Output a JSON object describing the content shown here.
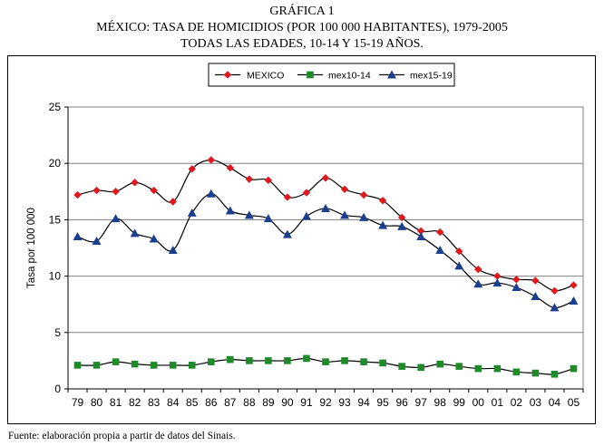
{
  "header": {
    "line1": "GRÁFICA 1",
    "line2": "MÉXICO: TASA DE HOMICIDIOS (POR 100 000 HABITANTES), 1979-2005",
    "line3": "TODAS LAS EDADES, 10-14 Y 15-19 AÑOS."
  },
  "source": "Fuente: elaboración propia a partir de datos del Sinais.",
  "chart_data": {
    "type": "line",
    "title": "MÉXICO: TASA DE HOMICIDIOS (POR 100 000 HABITANTES), 1979-2005",
    "xlabel": "",
    "ylabel": "Tasa por 100 000",
    "ylim": [
      0,
      25
    ],
    "yticks": [
      0,
      5,
      10,
      15,
      20,
      25
    ],
    "grid": true,
    "legend_position": "top",
    "categories": [
      "79",
      "80",
      "81",
      "82",
      "83",
      "84",
      "85",
      "86",
      "87",
      "88",
      "89",
      "90",
      "91",
      "92",
      "93",
      "94",
      "95",
      "96",
      "97",
      "98",
      "99",
      "00",
      "01",
      "02",
      "03",
      "04",
      "05"
    ],
    "series": [
      {
        "name": "MEXICO",
        "color": "#e0171c",
        "marker": "diamond",
        "values": [
          17.2,
          17.6,
          17.5,
          18.3,
          17.6,
          16.6,
          19.5,
          20.3,
          19.6,
          18.6,
          18.5,
          17.0,
          17.4,
          18.7,
          17.7,
          17.2,
          16.7,
          15.2,
          14.0,
          13.9,
          12.2,
          10.6,
          10.0,
          9.7,
          9.6,
          8.7,
          9.2
        ]
      },
      {
        "name": "mex10-14",
        "color": "#1e8a2a",
        "marker": "square",
        "values": [
          2.1,
          2.1,
          2.4,
          2.2,
          2.1,
          2.1,
          2.1,
          2.4,
          2.6,
          2.5,
          2.5,
          2.5,
          2.7,
          2.4,
          2.5,
          2.4,
          2.3,
          2.0,
          1.9,
          2.2,
          2.0,
          1.8,
          1.8,
          1.5,
          1.4,
          1.3,
          1.8
        ]
      },
      {
        "name": "mex15-19",
        "color": "#1a3f8f",
        "marker": "triangle",
        "values": [
          13.5,
          13.1,
          15.1,
          13.8,
          13.3,
          12.3,
          15.6,
          17.3,
          15.8,
          15.4,
          15.1,
          13.7,
          15.3,
          16.0,
          15.4,
          15.2,
          14.5,
          14.4,
          13.5,
          12.3,
          10.9,
          9.3,
          9.4,
          9.0,
          8.2,
          7.2,
          7.8
        ]
      }
    ]
  }
}
